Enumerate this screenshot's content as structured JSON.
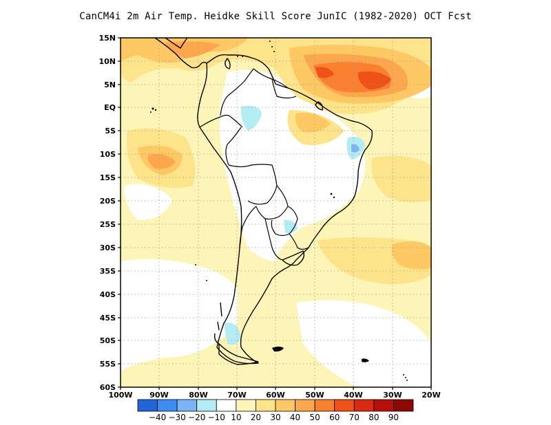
{
  "title": "CanCM4i  2m Air Temp. Heidke Skill Score JunIC (1982-2020) OCT Fcst",
  "lat_labels": [
    "15N",
    "10N",
    "5N",
    "EQ",
    "5S",
    "10S",
    "15S",
    "20S",
    "25S",
    "30S",
    "35S",
    "40S",
    "45S",
    "50S",
    "55S",
    "60S"
  ],
  "lon_labels": [
    "100W",
    "90W",
    "80W",
    "70W",
    "60W",
    "50W",
    "40W",
    "30W",
    "20W"
  ],
  "colorbar": {
    "labels": [
      "-40",
      "-30",
      "-20",
      "-10",
      "10",
      "20",
      "30",
      "40",
      "50",
      "60",
      "70",
      "80",
      "90"
    ],
    "colors": [
      "#2166d9",
      "#3d8cf0",
      "#7ab6f5",
      "#b4ecf4",
      "#ffffff",
      "#fdf5b8",
      "#fde38a",
      "#fec865",
      "#fca74d",
      "#f8802f",
      "#ee5219",
      "#d92a12",
      "#b5100c",
      "#8b0a08"
    ]
  },
  "regions": [
    {
      "level": 20,
      "color": "#fdf5b8"
    },
    {
      "level": 30,
      "color": "#fde38a"
    },
    {
      "level": 40,
      "color": "#fec865"
    },
    {
      "level": 50,
      "color": "#fca74d"
    },
    {
      "level": 60,
      "color": "#f8802f"
    },
    {
      "level": 70,
      "color": "#ee5219"
    },
    {
      "level": -10,
      "color": "#b4ecf4"
    },
    {
      "level": -20,
      "color": "#7ab6f5"
    }
  ]
}
